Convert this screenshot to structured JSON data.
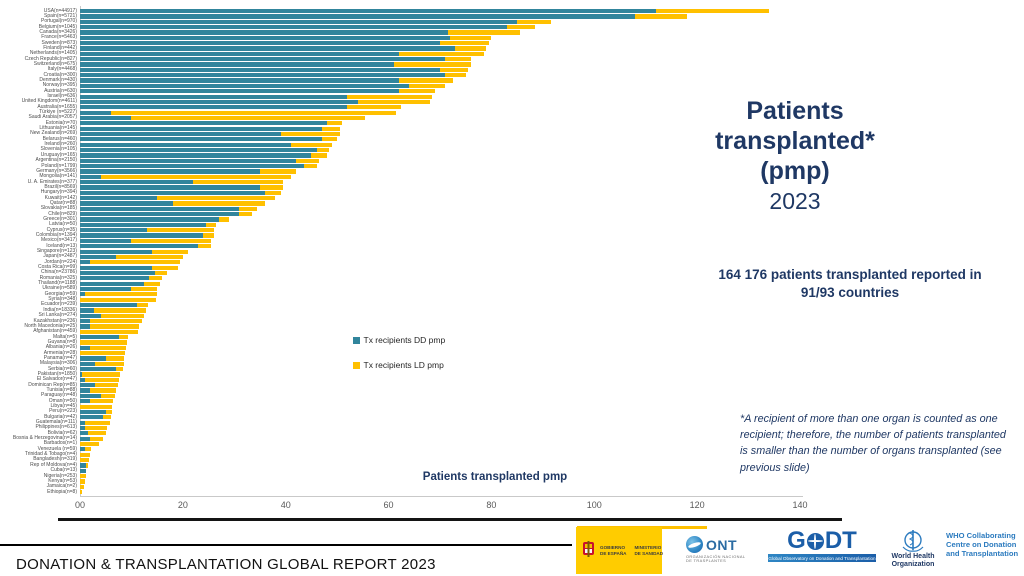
{
  "colors": {
    "dd": "#31859C",
    "ld": "#FFC000",
    "title_blue": "#1F3864"
  },
  "chart_data": {
    "type": "bar",
    "orientation": "horizontal",
    "stacked": true,
    "grid": false,
    "legend_position": "center-inside",
    "xlabel": "Patients transplanted pmp",
    "xlim": [
      0,
      140
    ],
    "x_tick_labels": [
      "00",
      "20",
      "40",
      "60",
      "80",
      "100",
      "120",
      "140"
    ],
    "x_tick_values": [
      0,
      20,
      40,
      60,
      80,
      100,
      120,
      140
    ],
    "legend": [
      {
        "label": "Tx recipients DD pmp",
        "color": "#31859C"
      },
      {
        "label": "Tx recipients LD pmp",
        "color": "#FFC000"
      }
    ],
    "categories": [
      "USA(n=44917)",
      "Spain(n=5721)",
      "Portugal(n=970)",
      "Belgium(n=1045)",
      "Canada(n=3426)",
      "France(n=5463)",
      "Sweden(n=873)",
      "Finland(n=442)",
      "Netherlands(n=1405)",
      "Czech Republic(n=827)",
      "Switzerland(n=675)",
      "Italy(n=4468)",
      "Croatia(n=300)",
      "Denmark(n=430)",
      "Norway(n=395)",
      "Austria(n=630)",
      "Israel(n=636)",
      "United Kingdom(n=4611)",
      "Australia(n=1655)",
      "Türkiye (n=5227)",
      "Saudi Arabia(n=2057)",
      "Estonia(n=70)",
      "Lithuania(n=145)",
      "New Zealand(n=269)",
      "Belarus(n=460)",
      "Ireland(n=260)",
      "Slovenia(n=105)",
      "Uruguay(n=165)",
      "Argentina(n=2150)",
      "Poland(n=1799)",
      "Germany(n=3566)",
      "Mongolia(n=141)",
      "U. A. Emirates(n=377)",
      "Brazil(n=8569)",
      "Hungary(n=394)",
      "Kuwait(n=142)",
      "Qatar(n=88)",
      "Slovakia(n=185)",
      "Chile(n=829)",
      "Greece(n=301)",
      "Latvia(n=50)",
      "Cyprus(n=35)",
      "Colombia(n=1394)",
      "Mexico(n=3417)",
      "Iceland(n=13)",
      "Singapore(n=123)",
      "Japan(n=2487)",
      "Jordan(n=224)",
      "Costa Rica(n=99)",
      "China(n=23786)",
      "Romania(n=325)",
      "Thailand(n=1188)",
      "Ukraine(n=589)",
      "Georgia(n=59)",
      "Syria(n=348)",
      "Ecuador(n=239)",
      "India(n=18336)",
      "Sri Lanka(n=274)",
      "Kazakhstan(n=236)",
      "North Macedonia(n=25)",
      "Afghanistan(n=459)",
      "Malta(n=5)",
      "Guyana(n=8)",
      "Albania(n=26)",
      "Armenia(n=28)",
      "Panama(n=47)",
      "Malaysia(n=306)",
      "Serbia(n=60)",
      "Pakistan(n=1850)",
      "El Salvador(n=47)",
      "Dominican Rep(n=85)",
      "Tunisia(n=88)",
      "Paraguay(n=48)",
      "Oman(n=50)",
      "Libya(n=45)",
      "Peru(n=223)",
      "Bulgaria(n=42)",
      "Guatemala(n=111)",
      "Philippines(n=613)",
      "Bolivia(n=62)",
      "Bosnia & Herzegovina(n=14)",
      "Barbados(n=1)",
      "Venezuela (n=59)",
      "Trinidad & Tobago(n=4)",
      "Bangladesh(n=319)",
      "Rep of Moldova(n=4)",
      "Cuba(n=13)",
      "Nigeria(n=253)",
      "Kenya(n=53)",
      "Jamaica(n=2)",
      "Ethiopia(n=8)"
    ],
    "series": [
      {
        "name": "Tx recipients DD pmp",
        "values": [
          112,
          108,
          85,
          83,
          71.5,
          72,
          70,
          73,
          62,
          71,
          61,
          70,
          71,
          62,
          64,
          62,
          52,
          54,
          52,
          6,
          10,
          48,
          47,
          39,
          47,
          41,
          46,
          45,
          42,
          43.5,
          35,
          4,
          22,
          35,
          36,
          15,
          18,
          31,
          31,
          27,
          24.5,
          13,
          24,
          10,
          23,
          14,
          7,
          2,
          14,
          14.5,
          13.5,
          12.5,
          10,
          1,
          0,
          11,
          2.8,
          4,
          2,
          2,
          0,
          7.5,
          0,
          2,
          0,
          5,
          3,
          7,
          0.3,
          1,
          3,
          2,
          4,
          2,
          0,
          5,
          4.5,
          1,
          1,
          1.5,
          2,
          0,
          1,
          0,
          0,
          1.2,
          1.2,
          0,
          0,
          0,
          0
        ]
      },
      {
        "name": "Tx recipients LD pmp",
        "values": [
          22,
          10,
          6.5,
          5.5,
          14,
          8,
          9.5,
          6,
          16.5,
          5,
          15,
          5.5,
          4,
          10.5,
          7,
          7,
          16.5,
          14,
          10.5,
          55.5,
          45.5,
          3,
          3.5,
          11.5,
          3,
          8,
          2.5,
          3,
          4.5,
          2.5,
          7,
          37,
          17.5,
          4.5,
          3,
          23,
          18,
          3.5,
          2.5,
          2,
          2,
          13,
          2,
          15.5,
          2.5,
          7,
          13,
          17.5,
          5,
          2.5,
          2.5,
          3,
          5,
          14,
          14.8,
          2.3,
          10,
          8.5,
          10,
          9.5,
          11.2,
          1.8,
          9.2,
          7,
          8.8,
          3.6,
          5.5,
          1.3,
          7.4,
          6.5,
          4.3,
          5,
          2.8,
          4.5,
          6.3,
          1.2,
          1.5,
          4.8,
          4.2,
          3.5,
          2.4,
          3.6,
          1.1,
          2,
          1.8,
          0.4,
          0,
          1.1,
          1,
          0.7,
          0.3
        ]
      }
    ]
  },
  "title": {
    "lines": [
      "Patients",
      "transplanted*",
      "(pmp)"
    ],
    "year": "2023"
  },
  "subtitle": {
    "line1": "164 176 patients transplanted reported in",
    "line2": "91/93 countries"
  },
  "footnote": "*A recipient of more than one organ is counted as one recipient; therefore, the number of patients transplanted is smaller than the number of organs transplanted (see previous slide)",
  "footer": {
    "report_title": "DONATION & TRANSPLANTATION GLOBAL REPORT 2023",
    "logos": {
      "spain": {
        "gobierno1": "GOBIERNO",
        "gobierno2": "DE ESPAÑA",
        "ministerio1": "MINISTERIO",
        "ministerio2": "DE SANIDAD"
      },
      "ont": {
        "abbr": "ONT",
        "sub1": "ORGANIZACIÓN NACIONAL",
        "sub2": "DE TRASPLANTES"
      },
      "godt": {
        "g": "G",
        "dt": "DT",
        "tagline": "Global Observatory on Donation and Transplantation"
      },
      "who": {
        "org1": "World Health",
        "org2": "Organization",
        "cc1": "WHO Collaborating",
        "cc2": "Centre on Donation",
        "cc3": "and Transplantation"
      }
    }
  }
}
